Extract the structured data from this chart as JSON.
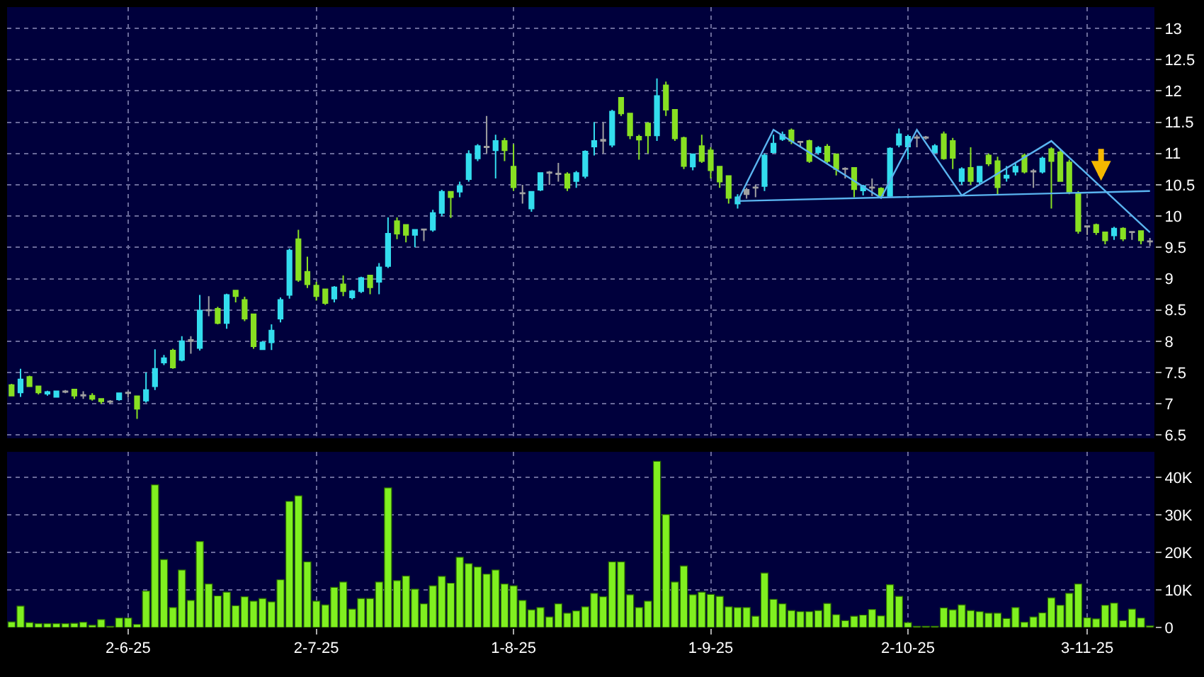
{
  "chart_data": [
    {
      "type": "candlestick",
      "categories": [
        null,
        null,
        null,
        null,
        null,
        null,
        null,
        null,
        null,
        null,
        null,
        null,
        null,
        null,
        null,
        null,
        null,
        null,
        null,
        null,
        null,
        null,
        null,
        null,
        null,
        null,
        null,
        null,
        null,
        null,
        null,
        null,
        null,
        null,
        null,
        null,
        null,
        null,
        null,
        null,
        null,
        null,
        null,
        null,
        null,
        null,
        null,
        null,
        null,
        null,
        null,
        null,
        null,
        null,
        null,
        null,
        null,
        null,
        null,
        null,
        null,
        null,
        null,
        null,
        null,
        null,
        null,
        null,
        null,
        null,
        null,
        null,
        null,
        null,
        null,
        null,
        null,
        null,
        null,
        null,
        null,
        null,
        null,
        null,
        null,
        null,
        null,
        null,
        null,
        null,
        null,
        null,
        null,
        null,
        null,
        null,
        null,
        null,
        null,
        null,
        null,
        null,
        null,
        null,
        null,
        null,
        null,
        null,
        null,
        null,
        null,
        null,
        null,
        null,
        null,
        null,
        null,
        null,
        null,
        null,
        null,
        null,
        null,
        null,
        null,
        null,
        null,
        null
      ],
      "ohlc": [
        [
          7.3,
          7.32,
          7.12,
          7.13
        ],
        [
          7.18,
          7.56,
          7.11,
          7.39
        ],
        [
          7.43,
          7.45,
          7.27,
          7.28
        ],
        [
          7.28,
          7.28,
          7.15,
          7.18
        ],
        [
          7.16,
          7.21,
          7.13,
          7.19
        ],
        [
          7.11,
          7.21,
          7.1,
          7.2
        ],
        [
          7.19,
          7.22,
          7.17,
          7.2
        ],
        [
          7.23,
          7.23,
          7.08,
          7.13
        ],
        [
          7.14,
          7.2,
          7.08,
          7.13
        ],
        [
          7.13,
          7.17,
          7.05,
          7.08
        ],
        [
          7.08,
          7.08,
          7.0,
          7.04
        ],
        [
          7.03,
          7.06,
          7.0,
          7.04
        ],
        [
          7.07,
          7.17,
          7.05,
          7.17
        ],
        [
          7.17,
          7.2,
          7.1,
          7.18
        ],
        [
          7.12,
          7.13,
          6.76,
          6.92
        ],
        [
          7.05,
          7.5,
          7.02,
          7.22
        ],
        [
          7.28,
          7.87,
          7.22,
          7.56
        ],
        [
          7.66,
          7.78,
          7.62,
          7.73
        ],
        [
          7.85,
          7.88,
          7.56,
          7.58
        ],
        [
          7.7,
          8.08,
          7.68,
          8.0
        ],
        [
          8.0,
          8.08,
          7.8,
          8.02
        ],
        [
          7.89,
          8.74,
          7.85,
          8.49
        ],
        [
          8.49,
          8.72,
          8.4,
          8.5
        ],
        [
          8.52,
          8.55,
          8.27,
          8.29
        ],
        [
          8.29,
          8.76,
          8.2,
          8.74
        ],
        [
          8.81,
          8.81,
          8.62,
          8.72
        ],
        [
          8.66,
          8.71,
          8.32,
          8.36
        ],
        [
          8.43,
          8.43,
          7.88,
          7.92
        ],
        [
          7.87,
          8.0,
          7.86,
          7.98
        ],
        [
          7.98,
          8.27,
          7.86,
          8.17
        ],
        [
          8.36,
          8.7,
          8.3,
          8.66
        ],
        [
          8.74,
          9.48,
          8.68,
          9.45
        ],
        [
          9.63,
          9.78,
          8.95,
          8.98
        ],
        [
          9.11,
          9.35,
          8.85,
          8.91
        ],
        [
          8.89,
          8.95,
          8.65,
          8.72
        ],
        [
          8.83,
          8.83,
          8.58,
          8.61
        ],
        [
          8.68,
          8.88,
          8.62,
          8.86
        ],
        [
          8.91,
          9.05,
          8.72,
          8.8
        ],
        [
          8.7,
          8.82,
          8.67,
          8.8
        ],
        [
          8.8,
          9.03,
          8.77,
          9.01
        ],
        [
          9.05,
          9.05,
          8.75,
          8.86
        ],
        [
          8.95,
          9.25,
          8.75,
          9.18
        ],
        [
          9.2,
          9.98,
          9.17,
          9.72
        ],
        [
          9.92,
          9.98,
          9.63,
          9.72
        ],
        [
          9.86,
          9.86,
          9.58,
          9.7
        ],
        [
          9.7,
          9.78,
          9.5,
          9.78
        ],
        [
          9.78,
          9.8,
          9.6,
          9.79
        ],
        [
          9.78,
          10.1,
          9.75,
          10.05
        ],
        [
          10.05,
          10.42,
          10.0,
          10.39
        ],
        [
          10.39,
          10.4,
          9.97,
          10.3
        ],
        [
          10.39,
          10.55,
          10.3,
          10.48
        ],
        [
          10.59,
          11.05,
          10.55,
          10.99
        ],
        [
          10.92,
          11.15,
          10.88,
          11.12
        ],
        [
          11.1,
          11.6,
          11.0,
          11.11
        ],
        [
          11.05,
          11.3,
          10.6,
          11.2
        ],
        [
          11.2,
          11.25,
          10.88,
          11.05
        ],
        [
          10.79,
          11.15,
          10.4,
          10.46
        ],
        [
          10.36,
          10.5,
          10.2,
          10.37
        ],
        [
          10.12,
          10.4,
          10.07,
          10.39
        ],
        [
          10.42,
          10.7,
          10.4,
          10.69
        ],
        [
          10.69,
          10.72,
          10.5,
          10.7
        ],
        [
          10.67,
          10.85,
          10.55,
          10.68
        ],
        [
          10.67,
          10.7,
          10.4,
          10.45
        ],
        [
          10.56,
          10.72,
          10.45,
          10.69
        ],
        [
          10.64,
          11.05,
          10.6,
          11.03
        ],
        [
          11.11,
          11.5,
          10.97,
          11.2
        ],
        [
          11.2,
          11.5,
          11.0,
          11.22
        ],
        [
          11.14,
          11.7,
          11.1,
          11.67
        ],
        [
          11.89,
          11.9,
          11.6,
          11.64
        ],
        [
          11.64,
          11.65,
          11.23,
          11.29
        ],
        [
          11.27,
          11.3,
          10.9,
          11.22
        ],
        [
          11.48,
          11.5,
          11.0,
          11.29
        ],
        [
          11.29,
          12.2,
          11.2,
          11.92
        ],
        [
          12.09,
          12.15,
          11.6,
          11.7
        ],
        [
          11.7,
          11.71,
          11.2,
          11.24
        ],
        [
          11.25,
          11.27,
          10.75,
          10.8
        ],
        [
          10.79,
          11.0,
          10.73,
          10.99
        ],
        [
          11.12,
          11.3,
          10.85,
          10.88
        ],
        [
          11.05,
          11.1,
          10.6,
          10.73
        ],
        [
          10.79,
          10.79,
          10.45,
          10.55
        ],
        [
          10.64,
          10.64,
          10.2,
          10.29
        ],
        [
          10.2,
          10.35,
          10.12,
          10.3
        ],
        [
          10.35,
          10.45,
          10.28,
          10.42
        ],
        [
          10.45,
          10.5,
          10.3,
          10.46
        ],
        [
          10.48,
          11.0,
          10.4,
          10.97
        ],
        [
          11.02,
          11.3,
          11.0,
          11.16
        ],
        [
          11.23,
          11.35,
          11.2,
          11.3
        ],
        [
          11.37,
          11.4,
          11.15,
          11.2
        ],
        [
          11.18,
          11.2,
          11.1,
          11.19
        ],
        [
          11.2,
          11.22,
          10.85,
          10.88
        ],
        [
          11.02,
          11.12,
          10.98,
          11.09
        ],
        [
          11.11,
          11.15,
          10.85,
          10.88
        ],
        [
          10.99,
          11.0,
          10.65,
          10.75
        ],
        [
          10.75,
          10.78,
          10.6,
          10.76
        ],
        [
          10.77,
          10.77,
          10.3,
          10.43
        ],
        [
          10.41,
          10.5,
          10.33,
          10.48
        ],
        [
          10.45,
          10.6,
          10.32,
          10.46
        ],
        [
          10.44,
          10.46,
          10.3,
          10.33
        ],
        [
          10.32,
          11.1,
          10.3,
          11.08
        ],
        [
          11.14,
          11.4,
          11.1,
          11.31
        ],
        [
          11.11,
          11.3,
          10.9,
          11.27
        ],
        [
          11.25,
          11.3,
          11.1,
          11.26
        ],
        [
          11.25,
          11.28,
          11.22,
          11.26
        ],
        [
          11.02,
          11.15,
          11.0,
          11.12
        ],
        [
          11.31,
          11.35,
          10.9,
          10.92
        ],
        [
          11.2,
          11.25,
          10.75,
          10.93
        ],
        [
          10.56,
          10.78,
          10.5,
          10.75
        ],
        [
          10.77,
          11.1,
          10.5,
          10.56
        ],
        [
          10.55,
          10.8,
          10.5,
          10.79
        ],
        [
          10.97,
          11.0,
          10.8,
          10.84
        ],
        [
          10.88,
          10.95,
          10.35,
          10.46
        ],
        [
          10.61,
          10.8,
          10.55,
          10.65
        ],
        [
          10.71,
          10.85,
          10.65,
          10.79
        ],
        [
          10.97,
          11.0,
          10.68,
          10.71
        ],
        [
          10.71,
          10.75,
          10.45,
          10.72
        ],
        [
          10.71,
          10.95,
          10.68,
          10.92
        ],
        [
          11.07,
          11.1,
          10.12,
          10.88
        ],
        [
          11.02,
          11.05,
          10.55,
          10.56
        ],
        [
          10.86,
          10.9,
          10.35,
          10.39
        ],
        [
          10.36,
          10.4,
          9.72,
          9.76
        ],
        [
          9.83,
          9.85,
          9.7,
          9.84
        ],
        [
          9.86,
          9.88,
          9.7,
          9.74
        ],
        [
          9.74,
          9.74,
          9.55,
          9.61
        ],
        [
          9.69,
          9.83,
          9.62,
          9.8
        ],
        [
          9.8,
          9.82,
          9.6,
          9.64
        ],
        [
          9.74,
          9.76,
          9.62,
          9.75
        ],
        [
          9.76,
          9.76,
          9.55,
          9.61
        ],
        [
          9.59,
          9.65,
          9.52,
          9.6
        ]
      ],
      "colors": [
        "#88e022",
        "#33ddee",
        "#88e022",
        "#88e022",
        "#33ddee",
        "#33ddee",
        "#a0a0a0",
        "#88e022",
        "#a0a0a0",
        "#88e022",
        "#88e022",
        "#a0a0a0",
        "#33ddee",
        "#a0a0a0",
        "#88e022",
        "#33ddee",
        "#33ddee",
        "#33ddee",
        "#88e022",
        "#33ddee",
        "#a0a0a0",
        "#33ddee",
        "#a0a0a0",
        "#88e022",
        "#33ddee",
        "#88e022",
        "#88e022",
        "#88e022",
        "#33ddee",
        "#33ddee",
        "#33ddee",
        "#33ddee",
        "#88e022",
        "#88e022",
        "#88e022",
        "#88e022",
        "#33ddee",
        "#88e022",
        "#33ddee",
        "#33ddee",
        "#88e022",
        "#33ddee",
        "#33ddee",
        "#88e022",
        "#88e022",
        "#33ddee",
        "#a0a0a0",
        "#33ddee",
        "#33ddee",
        "#88e022",
        "#33ddee",
        "#33ddee",
        "#33ddee",
        "#a0a0a0",
        "#33ddee",
        "#88e022",
        "#88e022",
        "#a0a0a0",
        "#33ddee",
        "#33ddee",
        "#a0a0a0",
        "#a0a0a0",
        "#88e022",
        "#33ddee",
        "#33ddee",
        "#33ddee",
        "#a0a0a0",
        "#33ddee",
        "#88e022",
        "#88e022",
        "#88e022",
        "#88e022",
        "#33ddee",
        "#88e022",
        "#88e022",
        "#88e022",
        "#33ddee",
        "#88e022",
        "#88e022",
        "#88e022",
        "#88e022",
        "#33ddee",
        "#a0a0a0",
        "#a0a0a0",
        "#33ddee",
        "#33ddee",
        "#33ddee",
        "#88e022",
        "#a0a0a0",
        "#88e022",
        "#33ddee",
        "#88e022",
        "#88e022",
        "#a0a0a0",
        "#88e022",
        "#33ddee",
        "#a0a0a0",
        "#88e022",
        "#33ddee",
        "#33ddee",
        "#33ddee",
        "#a0a0a0",
        "#a0a0a0",
        "#33ddee",
        "#88e022",
        "#88e022",
        "#33ddee",
        "#88e022",
        "#33ddee",
        "#88e022",
        "#88e022",
        "#33ddee",
        "#33ddee",
        "#88e022",
        "#a0a0a0",
        "#33ddee",
        "#88e022",
        "#88e022",
        "#88e022",
        "#88e022",
        "#a0a0a0",
        "#88e022",
        "#88e022",
        "#33ddee",
        "#88e022",
        "#a0a0a0",
        "#88e022",
        "#a0a0a0"
      ],
      "series": [
        {
          "type": "line",
          "color": "#5ab4f0",
          "values": [
            null,
            null,
            null,
            null,
            null,
            null,
            null,
            null,
            null,
            null,
            null,
            null,
            null,
            null,
            null,
            null,
            null,
            null,
            null,
            null,
            null,
            null,
            null,
            null,
            null,
            null,
            null,
            null,
            null,
            null,
            null,
            null,
            null,
            null,
            null,
            null,
            null,
            null,
            null,
            null,
            null,
            null,
            null,
            null,
            null,
            null,
            null,
            null,
            null,
            null,
            null,
            null,
            null,
            null,
            null,
            null,
            null,
            null,
            null,
            null,
            null,
            null,
            null,
            null,
            null,
            null,
            null,
            null,
            null,
            null,
            null,
            null,
            null,
            null,
            null,
            null,
            null,
            null,
            null,
            null,
            null,
            10.24,
            null,
            null,
            null,
            11.38,
            null,
            null,
            null,
            null,
            null,
            null,
            null,
            null,
            null,
            null,
            null,
            10.29,
            null,
            null,
            null,
            11.38,
            null,
            null,
            null,
            null,
            10.33,
            null,
            null,
            null,
            null,
            null,
            null,
            null,
            null,
            null,
            11.2,
            null,
            null,
            null,
            null,
            null,
            null,
            null,
            null,
            null,
            null,
            9.74
          ]
        },
        {
          "type": "line",
          "color": "#5ab4f0",
          "values": [
            null,
            null,
            null,
            null,
            null,
            null,
            null,
            null,
            null,
            null,
            null,
            null,
            null,
            null,
            null,
            null,
            null,
            null,
            null,
            null,
            null,
            null,
            null,
            null,
            null,
            null,
            null,
            null,
            null,
            null,
            null,
            null,
            null,
            null,
            null,
            null,
            null,
            null,
            null,
            null,
            null,
            null,
            null,
            null,
            null,
            null,
            null,
            null,
            null,
            null,
            null,
            null,
            null,
            null,
            null,
            null,
            null,
            null,
            null,
            null,
            null,
            null,
            null,
            null,
            null,
            null,
            null,
            null,
            null,
            null,
            null,
            null,
            null,
            null,
            null,
            null,
            null,
            null,
            null,
            null,
            null,
            10.24,
            null,
            null,
            null,
            null,
            null,
            null,
            null,
            null,
            null,
            null,
            null,
            null,
            null,
            null,
            null,
            null,
            null,
            null,
            null,
            null,
            null,
            null,
            null,
            null,
            null,
            null,
            null,
            null,
            null,
            null,
            null,
            null,
            null,
            null,
            null,
            null,
            null,
            null,
            null,
            null,
            null,
            null,
            null,
            null,
            null,
            10.4
          ]
        }
      ],
      "ylim": [
        6.45,
        13.34
      ],
      "yticks": [
        6.5,
        7,
        7.5,
        8,
        8.5,
        9,
        9.5,
        10,
        10.5,
        11,
        11.5,
        12,
        12.5,
        13
      ],
      "grid": true,
      "tick_labels": "y"
    },
    {
      "type": "bar",
      "categories": [
        null,
        null,
        null,
        null,
        null,
        null,
        null,
        null,
        null,
        null,
        null,
        null,
        null,
        "2-6-25",
        null,
        null,
        null,
        null,
        null,
        null,
        null,
        null,
        null,
        null,
        null,
        null,
        null,
        null,
        null,
        null,
        null,
        null,
        null,
        null,
        "2-7-25",
        null,
        null,
        null,
        null,
        null,
        null,
        null,
        null,
        null,
        null,
        null,
        null,
        null,
        null,
        null,
        null,
        null,
        null,
        null,
        null,
        null,
        "1-8-25",
        null,
        null,
        null,
        null,
        null,
        null,
        null,
        null,
        null,
        null,
        null,
        null,
        null,
        null,
        null,
        null,
        null,
        null,
        null,
        null,
        null,
        "1-9-25",
        null,
        null,
        null,
        null,
        null,
        null,
        null,
        null,
        null,
        null,
        null,
        null,
        null,
        null,
        null,
        null,
        null,
        null,
        null,
        null,
        null,
        "2-10-25",
        null,
        null,
        null,
        null,
        null,
        null,
        null,
        null,
        null,
        null,
        null,
        null,
        null,
        null,
        null,
        null,
        null,
        null,
        null,
        "3-11-25",
        null,
        null,
        null,
        null,
        null,
        null,
        null
      ],
      "values": [
        1.5,
        5.7,
        1.3,
        1.0,
        1.0,
        1.0,
        1.0,
        1.1,
        1.4,
        0.6,
        2.1,
        0.3,
        2.5,
        2.5,
        0.8,
        9.7,
        38.0,
        18.1,
        5.3,
        15.3,
        7.2,
        22.9,
        11.6,
        8.4,
        9.4,
        5.8,
        8.2,
        7.0,
        7.7,
        6.8,
        12.7,
        33.6,
        35.1,
        17.5,
        7.0,
        6.0,
        10.7,
        12.1,
        4.9,
        7.7,
        7.7,
        12.1,
        37.2,
        12.5,
        13.7,
        10.2,
        6.3,
        11.1,
        13.6,
        11.8,
        18.7,
        17.0,
        16.1,
        14.2,
        15.3,
        11.6,
        11.1,
        7.2,
        4.7,
        5.3,
        2.8,
        6.3,
        3.8,
        4.4,
        5.5,
        9.1,
        8.2,
        17.5,
        17.5,
        8.7,
        5.3,
        7.0,
        44.3,
        30.1,
        12.1,
        16.4,
        8.7,
        9.4,
        8.8,
        8.3,
        5.5,
        5.3,
        5.3,
        3.0,
        14.5,
        7.5,
        6.3,
        4.5,
        4.2,
        4.2,
        4.5,
        6.4,
        3.4,
        1.8,
        3.0,
        3.3,
        4.8,
        3.1,
        11.4,
        8.3,
        1.3,
        0.3,
        0.3,
        0.3,
        5.2,
        4.7,
        6.0,
        4.5,
        4.2,
        3.8,
        3.8,
        2.4,
        5.3,
        1.4,
        2.8,
        3.9,
        7.9,
        5.9,
        9.1,
        11.6,
        2.6,
        2.3,
        5.9,
        6.5,
        1.8,
        4.9,
        2.5,
        0.4
      ],
      "color": "#80f020",
      "ylim": [
        0,
        46.8
      ],
      "yticks": [
        0,
        {
          "value": 10,
          "label": "10K"
        },
        {
          "value": 20,
          "label": "20K"
        },
        {
          "value": 30,
          "label": "30K"
        },
        {
          "value": 40,
          "label": "40K"
        }
      ],
      "grid": true
    }
  ]
}
